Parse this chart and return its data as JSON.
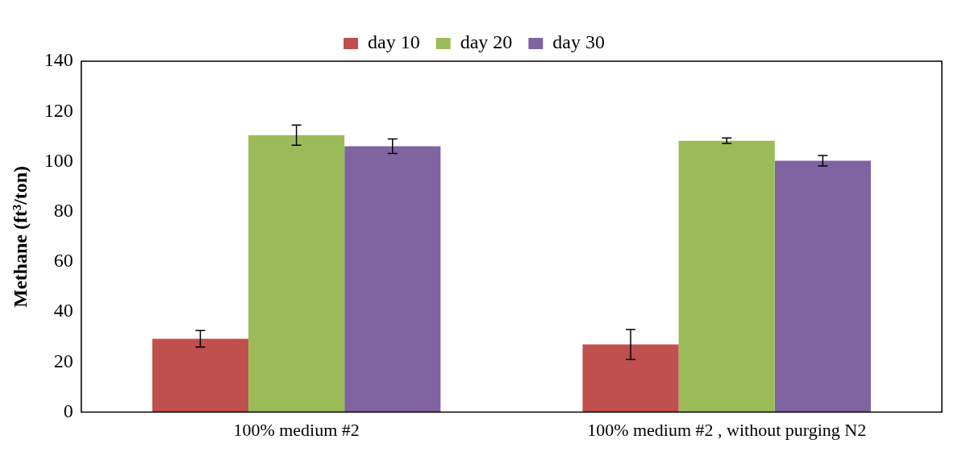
{
  "chart_data": {
    "type": "bar",
    "ylabel": "Methane (ft³/ton)",
    "categories": [
      "100% medium #2",
      "100% medium #2 , without purging N2"
    ],
    "series": [
      {
        "name": "day 10",
        "color": "#c0504d",
        "values": [
          29.3,
          27
        ],
        "errors": [
          3.3,
          6
        ]
      },
      {
        "name": "day 20",
        "color": "#9bbb59",
        "values": [
          110.5,
          108.3
        ],
        "errors": [
          4,
          1.1
        ]
      },
      {
        "name": "day 30",
        "color": "#8064a2",
        "values": [
          106.1,
          100.3
        ],
        "errors": [
          2.9,
          2.1
        ]
      }
    ],
    "ylim": [
      0,
      140
    ],
    "yticks": [
      0,
      20,
      40,
      60,
      80,
      100,
      120,
      140
    ],
    "grid": false,
    "legend": "top"
  }
}
